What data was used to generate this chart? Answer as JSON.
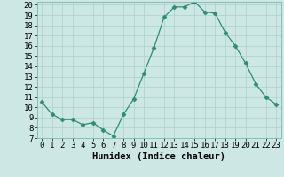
{
  "x": [
    0,
    1,
    2,
    3,
    4,
    5,
    6,
    7,
    8,
    9,
    10,
    11,
    12,
    13,
    14,
    15,
    16,
    17,
    18,
    19,
    20,
    21,
    22,
    23
  ],
  "y": [
    10.5,
    9.3,
    8.8,
    8.8,
    8.3,
    8.5,
    7.8,
    7.2,
    9.3,
    10.8,
    13.3,
    15.8,
    18.8,
    19.8,
    19.8,
    20.3,
    19.3,
    19.2,
    17.3,
    16.0,
    14.3,
    12.3,
    11.0,
    10.3
  ],
  "xlabel": "Humidex (Indice chaleur)",
  "ylim": [
    7,
    20
  ],
  "xlim": [
    -0.5,
    23.5
  ],
  "yticks": [
    7,
    8,
    9,
    10,
    11,
    12,
    13,
    14,
    15,
    16,
    17,
    18,
    19,
    20
  ],
  "xticks": [
    0,
    1,
    2,
    3,
    4,
    5,
    6,
    7,
    8,
    9,
    10,
    11,
    12,
    13,
    14,
    15,
    16,
    17,
    18,
    19,
    20,
    21,
    22,
    23
  ],
  "xtick_labels": [
    "0",
    "1",
    "2",
    "3",
    "4",
    "5",
    "6",
    "7",
    "8",
    "9",
    "10",
    "11",
    "12",
    "13",
    "14",
    "15",
    "16",
    "17",
    "18",
    "19",
    "20",
    "21",
    "22",
    "23"
  ],
  "line_color": "#2d8b78",
  "marker": "D",
  "marker_size": 2.5,
  "axes_bg": "#cde8e4",
  "fig_bg": "#cde8e4",
  "grid_color": "#aed4ce",
  "tick_label_fontsize": 6.5,
  "xlabel_fontsize": 7.5
}
